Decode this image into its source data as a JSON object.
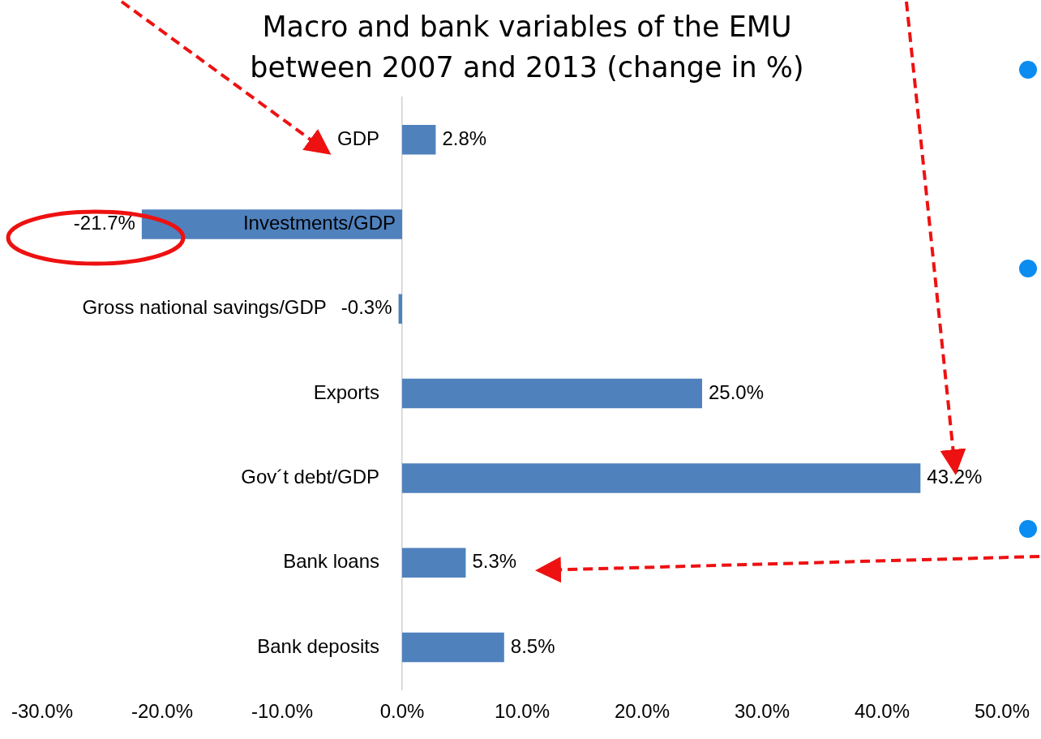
{
  "chart_data": {
    "type": "bar",
    "orientation": "horizontal",
    "title": "Macro and bank variables of the EMU between 2007 and 2013 (change in %)",
    "categories": [
      "GDP",
      "Investments/GDP",
      "Gross national savings/GDP",
      "Exports",
      "Gov´t debt/GDP",
      "Bank loans",
      "Bank deposits"
    ],
    "values": [
      2.8,
      -21.7,
      -0.3,
      25.0,
      43.2,
      5.3,
      8.5
    ],
    "value_labels": [
      "2.8%",
      "-21.7%",
      "-0.3%",
      "25.0%",
      "43.2%",
      "5.3%",
      "8.5%"
    ],
    "color": "#4f81bd",
    "xlim": [
      -30,
      50
    ],
    "xticks": [
      {
        "value": -30,
        "label": "-30.0%"
      },
      {
        "value": -20,
        "label": "-20.0%"
      },
      {
        "value": -10,
        "label": "-10.0%"
      },
      {
        "value": 0,
        "label": "0.0%"
      },
      {
        "value": 10,
        "label": "10.0%"
      },
      {
        "value": 20,
        "label": "20.0%"
      },
      {
        "value": 30,
        "label": "30.0%"
      },
      {
        "value": 40,
        "label": "40.0%"
      },
      {
        "value": 50,
        "label": "50.0%"
      }
    ]
  }
}
